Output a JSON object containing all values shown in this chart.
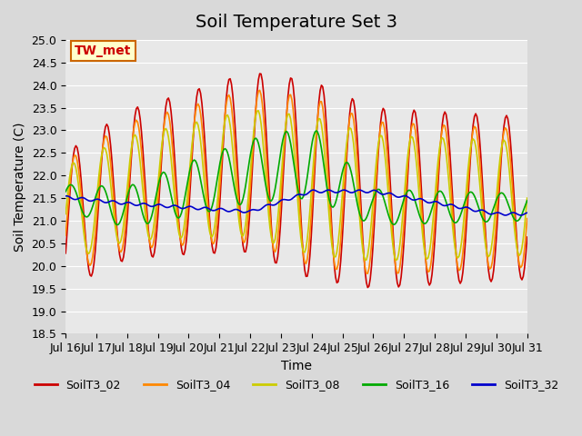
{
  "title": "Soil Temperature Set 3",
  "xlabel": "Time",
  "ylabel": "Soil Temperature (C)",
  "ylim": [
    18.5,
    25.0
  ],
  "yticks": [
    18.5,
    19.0,
    19.5,
    20.0,
    20.5,
    21.0,
    21.5,
    22.0,
    22.5,
    23.0,
    23.5,
    24.0,
    24.5,
    25.0
  ],
  "xtick_labels": [
    "Jul 16",
    "Jul 17",
    "Jul 18",
    "Jul 19",
    "Jul 20",
    "Jul 21",
    "Jul 22",
    "Jul 23",
    "Jul 24",
    "Jul 25",
    "Jul 26",
    "Jul 27",
    "Jul 28",
    "Jul 29",
    "Jul 30",
    "Jul 31"
  ],
  "colors": {
    "SoilT3_02": "#cc0000",
    "SoilT3_04": "#ff8800",
    "SoilT3_08": "#cccc00",
    "SoilT3_16": "#00aa00",
    "SoilT3_32": "#0000cc"
  },
  "legend_labels": [
    "SoilT3_02",
    "SoilT3_04",
    "SoilT3_08",
    "SoilT3_16",
    "SoilT3_32"
  ],
  "tw_met_label": "TW_met",
  "background_color": "#e8e8e8",
  "title_fontsize": 14,
  "axis_label_fontsize": 10,
  "tick_fontsize": 9
}
